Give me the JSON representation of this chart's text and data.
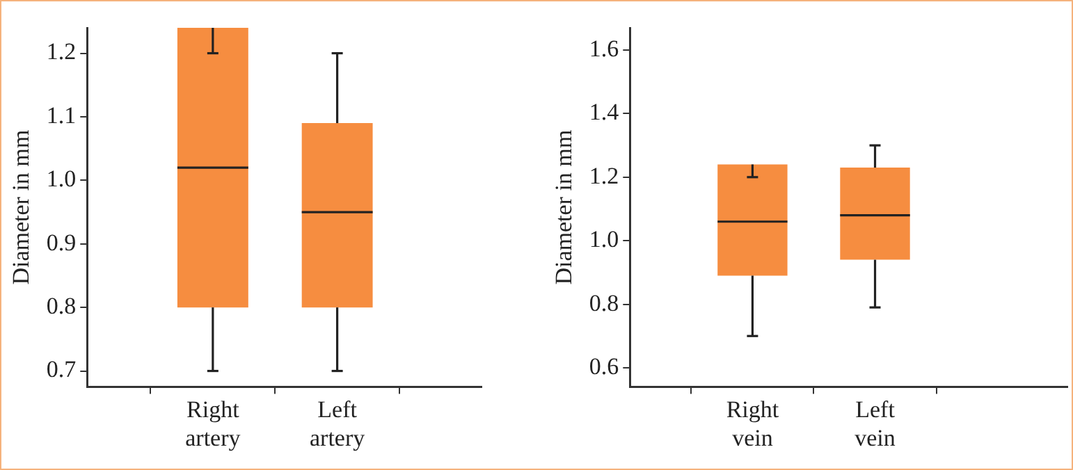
{
  "chart_data": [
    {
      "type": "box",
      "ylabel": "Diameter in mm",
      "categories": [
        "Right artery",
        "Left artery"
      ],
      "color": "#f68d40",
      "grid": false,
      "boxes": [
        {
          "low": 0.7,
          "q1": 0.8,
          "median": 1.02,
          "q3": 1.24,
          "high": 1.2
        },
        {
          "low": 0.7,
          "q1": 0.8,
          "median": 0.95,
          "q3": 1.09,
          "high": 1.2
        }
      ],
      "ylim": [
        0.675,
        1.24
      ],
      "yticks": [
        0.7,
        0.8,
        0.9,
        {
          "value": 1,
          "label": "1.0"
        },
        1.1,
        1.2
      ]
    },
    {
      "type": "box",
      "ylabel": "Diameter in mm",
      "categories": [
        "Right vein",
        "Left vein"
      ],
      "color": "#f68d40",
      "grid": false,
      "boxes": [
        {
          "low": 0.7,
          "q1": 0.89,
          "median": 1.06,
          "q3": 1.24,
          "high": 1.2
        },
        {
          "low": 0.79,
          "q1": 0.94,
          "median": 1.08,
          "q3": 1.23,
          "high": 1.3
        }
      ],
      "ylim": [
        0.54,
        1.67
      ],
      "yticks": [
        0.6,
        0.8,
        {
          "value": 1,
          "label": "1.0"
        },
        1.2,
        1.4,
        1.6
      ]
    }
  ]
}
